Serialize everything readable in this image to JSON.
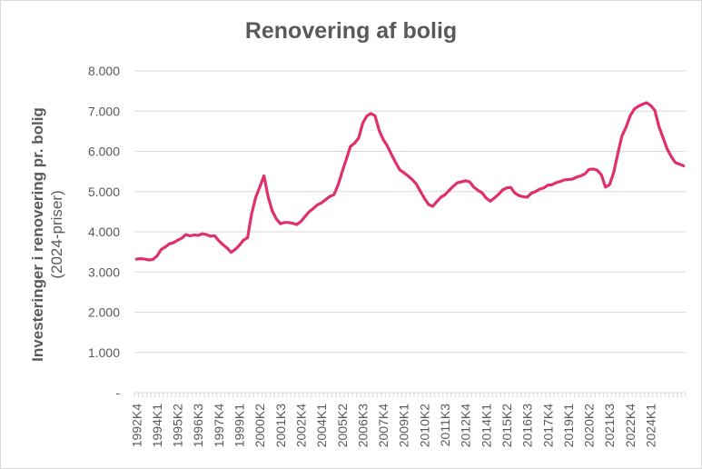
{
  "chart_data": {
    "type": "line",
    "title": "Renovering af bolig",
    "ylabel_line1": "Investeringer i renovering pr. bolig",
    "ylabel_line2": "(2024-priser)",
    "xlabel": "",
    "ylim": [
      0,
      8000
    ],
    "yticks": [
      {
        "value": 0,
        "label": "-"
      },
      {
        "value": 1000,
        "label": "1.000"
      },
      {
        "value": 2000,
        "label": "2.000"
      },
      {
        "value": 3000,
        "label": "3.000"
      },
      {
        "value": 4000,
        "label": "4.000"
      },
      {
        "value": 5000,
        "label": "5.000"
      },
      {
        "value": 6000,
        "label": "6.000"
      },
      {
        "value": 7000,
        "label": "7.000"
      },
      {
        "value": 8000,
        "label": "8.000"
      }
    ],
    "grid": true,
    "line_color": "#e0306a",
    "x_labels": [
      "1992K4",
      "1994K1",
      "1995K2",
      "1996K3",
      "1997K4",
      "1999K1",
      "2000K2",
      "2001K3",
      "2002K4",
      "2004K1",
      "2005K2",
      "2006K3",
      "2007K4",
      "2009K1",
      "2010K2",
      "2011K3",
      "2012K4",
      "2014K1",
      "2015K2",
      "2016K3",
      "2017K4",
      "2019K1",
      "2020K2",
      "2021K3",
      "2022K4",
      "2024K1"
    ],
    "series": [
      {
        "values": [
          3320,
          3330,
          3320,
          3300,
          3310,
          3400,
          3560,
          3620,
          3700,
          3730,
          3790,
          3840,
          3930,
          3900,
          3920,
          3910,
          3950,
          3930,
          3890,
          3900,
          3780,
          3680,
          3600,
          3490,
          3560,
          3660,
          3790,
          3850,
          4450,
          4860,
          5120,
          5390,
          4870,
          4520,
          4320,
          4200,
          4230,
          4230,
          4210,
          4180,
          4260,
          4380,
          4500,
          4580,
          4670,
          4720,
          4800,
          4880,
          4920,
          5160,
          5490,
          5800,
          6120,
          6200,
          6330,
          6700,
          6880,
          6940,
          6880,
          6520,
          6290,
          6130,
          5920,
          5720,
          5540,
          5470,
          5390,
          5300,
          5190,
          5010,
          4830,
          4680,
          4630,
          4750,
          4860,
          4920,
          5030,
          5130,
          5220,
          5240,
          5270,
          5240,
          5110,
          5030,
          4970,
          4840,
          4760,
          4840,
          4930,
          5040,
          5090,
          5100,
          4960,
          4900,
          4870,
          4860,
          4960,
          5000,
          5060,
          5090,
          5160,
          5170,
          5220,
          5250,
          5290,
          5300,
          5310,
          5360,
          5390,
          5440,
          5550,
          5560,
          5530,
          5420,
          5110,
          5170,
          5470,
          5940,
          6380,
          6600,
          6880,
          7050,
          7120,
          7170,
          7210,
          7140,
          7020,
          6620,
          6340,
          6060,
          5870,
          5720,
          5680,
          5640
        ]
      }
    ]
  }
}
